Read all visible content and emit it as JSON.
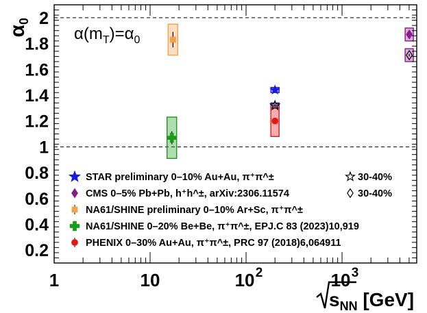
{
  "chart_data": {
    "type": "scatter",
    "xscale": "log",
    "xlim": [
      1,
      6000
    ],
    "ylim": [
      0.1,
      2.1
    ],
    "xlabel": "√s_NN [GeV]",
    "ylabel": "α₀",
    "x_ticks": [
      {
        "value": 1,
        "label": "1"
      },
      {
        "value": 10,
        "label": "10"
      },
      {
        "value": 100,
        "base": "10",
        "exp": "2"
      },
      {
        "value": 1000,
        "base": "10",
        "exp": "3"
      }
    ],
    "y_ticks": [
      0.2,
      0.4,
      0.6,
      0.8,
      1,
      1.2,
      1.4,
      1.6,
      1.8,
      2
    ],
    "y_tick_labels": [
      "0.2",
      "0.4",
      "0.6",
      "0.8",
      "1",
      "1.2",
      "1.4",
      "1.6",
      "1.8",
      "2"
    ],
    "reference_lines": [
      1,
      2
    ],
    "annotation": "α(m_T)=α₀",
    "series": [
      {
        "name": "STAR preliminary 0–10% Au+Au, π⁺π^±",
        "marker": "star",
        "color": "#1a1adc",
        "points": [
          {
            "x": 200,
            "y": 1.44,
            "err": 0.01,
            "sys": 0.02,
            "hollow": false
          },
          {
            "x": 200,
            "y": 1.32,
            "err": 0.01,
            "sys": 0.02,
            "hollow": true
          }
        ]
      },
      {
        "name": "CMS 0–5% Pb+Pb, h⁺h^±, arXiv:2306.11574",
        "marker": "diamond",
        "color": "#8b1a8b",
        "points": [
          {
            "x": 5020,
            "y": 1.87,
            "err": 0.01,
            "sys": 0.05,
            "hollow": false
          },
          {
            "x": 5020,
            "y": 1.71,
            "err": 0.01,
            "sys": 0.05,
            "hollow": true
          }
        ]
      },
      {
        "name": "NA61/SHINE preliminary 0–10% Ar+Sc, π⁺π^±",
        "marker": "square",
        "color": "#f5a04c",
        "points": [
          {
            "x": 17.3,
            "y": 1.83,
            "err": 0.06,
            "sys": 0.12,
            "hollow": false
          }
        ]
      },
      {
        "name": "NA61/SHINE 0–20% Be+Be, π⁺π^±, EPJ.C 83 (2023)10,919",
        "marker": "cross",
        "color": "#1c9a1c",
        "points": [
          {
            "x": 16.84,
            "y": 1.07,
            "err": 0.05,
            "sys": 0.16,
            "hollow": false
          }
        ]
      },
      {
        "name": "PHENIX 0–30% Au+Au, π⁺π^±, PRC 97 (2018)6,064911",
        "marker": "circle",
        "color": "#e01818",
        "points": [
          {
            "x": 200,
            "y": 1.2,
            "err": 0.02,
            "sys": 0.12,
            "hollow": false
          }
        ]
      }
    ],
    "legend": {
      "placement": "bottom-left",
      "entries": [
        {
          "series": 0,
          "label": "STAR preliminary 0–10% Au+Au, π⁺π^±",
          "extra": "30-40%",
          "extra_marker": "star"
        },
        {
          "series": 1,
          "label": "CMS 0–5% Pb+Pb, h⁺h^±, arXiv:2306.11574",
          "extra": "30-40%",
          "extra_marker": "diamond"
        },
        {
          "series": 2,
          "label": "NA61/SHINE preliminary 0–10% Ar+Sc, π⁺π^±"
        },
        {
          "series": 3,
          "label": "NA61/SHINE 0–20% Be+Be, π⁺π^±, EPJ.C 83 (2023)10,919"
        },
        {
          "series": 4,
          "label": "PHENIX 0–30% Au+Au, π⁺π^±, PRC 97 (2018)6,064911"
        }
      ]
    }
  }
}
